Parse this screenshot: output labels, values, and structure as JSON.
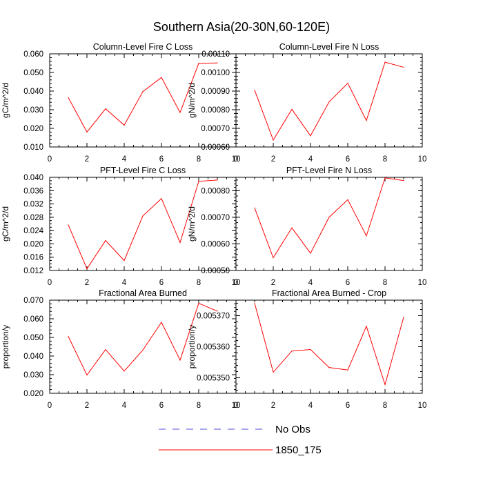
{
  "figure": {
    "title": "Southern Asia(20-30N,60-120E)",
    "line_color": "#ff0000",
    "obs_color": "#4d4dd9"
  },
  "legend": {
    "obs_label": "No Obs",
    "model_label": "1850_175"
  },
  "chart_data": [
    {
      "type": "line",
      "title": "Column-Level Fire C Loss",
      "ylabel": "gC/m^2/d",
      "xlim": [
        0,
        10
      ],
      "ylim": [
        0.01,
        0.06
      ],
      "xticks": [
        0,
        2,
        4,
        6,
        8,
        10
      ],
      "xtick_labels": [
        "0",
        "2",
        "4",
        "6",
        "8",
        "10"
      ],
      "yticks": [
        0.01,
        0.02,
        0.03,
        0.04,
        0.05,
        0.06
      ],
      "ytick_labels": [
        "0.010",
        "0.020",
        "0.030",
        "0.040",
        "0.050",
        "0.060"
      ],
      "yminor_step": 0.002,
      "x": [
        1,
        2,
        3,
        4,
        5,
        6,
        7,
        8,
        9
      ],
      "series": [
        {
          "name": "1850_175",
          "values": [
            0.0365,
            0.018,
            0.0305,
            0.0217,
            0.0397,
            0.0473,
            0.0285,
            0.0549,
            0.0551
          ]
        }
      ]
    },
    {
      "type": "line",
      "title": "Column-Level Fire N Loss",
      "ylabel": "gN/m^2/d",
      "xlim": [
        0,
        10
      ],
      "ylim": [
        0.0006,
        0.0011
      ],
      "xticks": [
        0,
        2,
        4,
        6,
        8,
        10
      ],
      "xtick_labels": [
        "0",
        "2",
        "4",
        "6",
        "8",
        "10"
      ],
      "yticks": [
        0.0006,
        0.0007,
        0.0008,
        0.0009,
        0.001,
        0.0011
      ],
      "ytick_labels": [
        "0.00060",
        "0.00070",
        "0.00080",
        "0.00090",
        "0.00100",
        "0.00110"
      ],
      "yminor_step": 2e-05,
      "x": [
        1,
        2,
        3,
        4,
        5,
        6,
        7,
        8,
        9
      ],
      "series": [
        {
          "name": "1850_175",
          "values": [
            0.000905,
            0.000637,
            0.000802,
            0.00066,
            0.000842,
            0.000942,
            0.000742,
            0.001055,
            0.001028
          ]
        }
      ]
    },
    {
      "type": "line",
      "title": "PFT-Level Fire C Loss",
      "ylabel": "gC/m^2/d",
      "xlim": [
        0,
        10
      ],
      "ylim": [
        0.012,
        0.04
      ],
      "xticks": [
        0,
        2,
        4,
        6,
        8,
        10
      ],
      "xtick_labels": [
        "0",
        "2",
        "4",
        "6",
        "8",
        "10"
      ],
      "yticks": [
        0.012,
        0.016,
        0.02,
        0.024,
        0.028,
        0.032,
        0.036,
        0.04
      ],
      "ytick_labels": [
        "0.012",
        "0.016",
        "0.020",
        "0.024",
        "0.028",
        "0.032",
        "0.036",
        "0.040"
      ],
      "yminor_step": 0.001,
      "x": [
        1,
        2,
        3,
        4,
        5,
        6,
        7,
        8,
        9
      ],
      "series": [
        {
          "name": "1850_175",
          "values": [
            0.0257,
            0.0125,
            0.021,
            0.015,
            0.0284,
            0.0336,
            0.0204,
            0.0388,
            0.0392
          ]
        }
      ]
    },
    {
      "type": "line",
      "title": "PFT-Level Fire N Loss",
      "ylabel": "gN/m^2/d",
      "xlim": [
        0,
        10
      ],
      "ylim": [
        0.0005,
        0.00085
      ],
      "xticks": [
        0,
        2,
        4,
        6,
        8,
        10
      ],
      "xtick_labels": [
        "0",
        "2",
        "4",
        "6",
        "8",
        "10"
      ],
      "yticks": [
        0.0005,
        0.0006,
        0.0007,
        0.0008
      ],
      "ytick_labels": [
        "0.00050",
        "0.00060",
        "0.00070",
        "0.00080"
      ],
      "yminor_step": 2e-05,
      "x": [
        1,
        2,
        3,
        4,
        5,
        6,
        7,
        8,
        9
      ],
      "series": [
        {
          "name": "1850_175",
          "values": [
            0.000735,
            0.000548,
            0.00066,
            0.000565,
            0.0007,
            0.000766,
            0.00063,
            0.000848,
            0.000838
          ]
        }
      ]
    },
    {
      "type": "line",
      "title": "Fractional Area Burned",
      "ylabel": "proportion/y",
      "xlim": [
        0,
        10
      ],
      "ylim": [
        0.02,
        0.07
      ],
      "xticks": [
        0,
        2,
        4,
        6,
        8,
        10
      ],
      "xtick_labels": [
        "0",
        "2",
        "4",
        "6",
        "8",
        "10"
      ],
      "yticks": [
        0.02,
        0.03,
        0.04,
        0.05,
        0.06,
        0.07
      ],
      "ytick_labels": [
        "0.020",
        "0.030",
        "0.040",
        "0.050",
        "0.060",
        "0.070"
      ],
      "yminor_step": 0.002,
      "x": [
        1,
        2,
        3,
        4,
        5,
        6,
        7,
        8,
        9
      ],
      "series": [
        {
          "name": "1850_175",
          "values": [
            0.0505,
            0.0298,
            0.0435,
            0.0319,
            0.0432,
            0.0581,
            0.0378,
            0.0683,
            0.0641
          ]
        }
      ]
    },
    {
      "type": "line",
      "title": "Fractional Area Burned - Crop",
      "ylabel": "proportion/y",
      "xlim": [
        0,
        10
      ],
      "ylim": [
        0.005345,
        0.005375
      ],
      "xticks": [
        0,
        2,
        4,
        6,
        8,
        10
      ],
      "xtick_labels": [
        "0",
        "2",
        "4",
        "6",
        "8",
        "10"
      ],
      "yticks": [
        0.00535,
        0.00536,
        0.00537
      ],
      "ytick_labels": [
        "0.005350",
        "0.005360",
        "0.005370"
      ],
      "yminor_step": 2e-06,
      "x": [
        1,
        2,
        3,
        4,
        5,
        6,
        7,
        8,
        9
      ],
      "series": [
        {
          "name": "1850_175",
          "values": [
            0.005374,
            0.0053518,
            0.0053586,
            0.0053591,
            0.0053533,
            0.0053525,
            0.0053666,
            0.0053478,
            0.0053695
          ]
        }
      ]
    }
  ]
}
